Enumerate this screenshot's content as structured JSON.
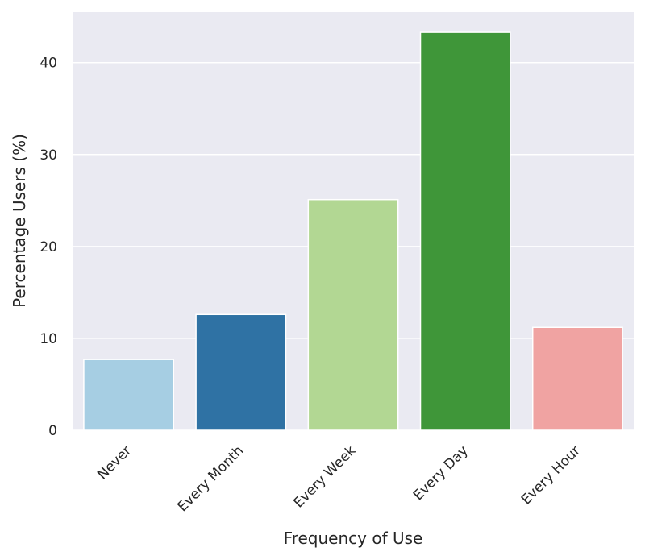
{
  "chart_data": {
    "type": "bar",
    "categories": [
      "Never",
      "Every Month",
      "Every Week",
      "Every Day",
      "Every Hour"
    ],
    "values": [
      7.7,
      12.6,
      25.1,
      43.3,
      11.2
    ],
    "colors": [
      "#a6cee3",
      "#2f72a4",
      "#b2d793",
      "#3f9639",
      "#f0a3a2"
    ],
    "title": "",
    "xlabel": "Frequency of Use",
    "ylabel": "Percentage Users (%)",
    "ylim": [
      0,
      45.5
    ],
    "yticks": [
      0,
      10,
      20,
      30,
      40
    ],
    "grid": true,
    "background": "#eaeaf2",
    "gridColor": "#ffffff"
  }
}
